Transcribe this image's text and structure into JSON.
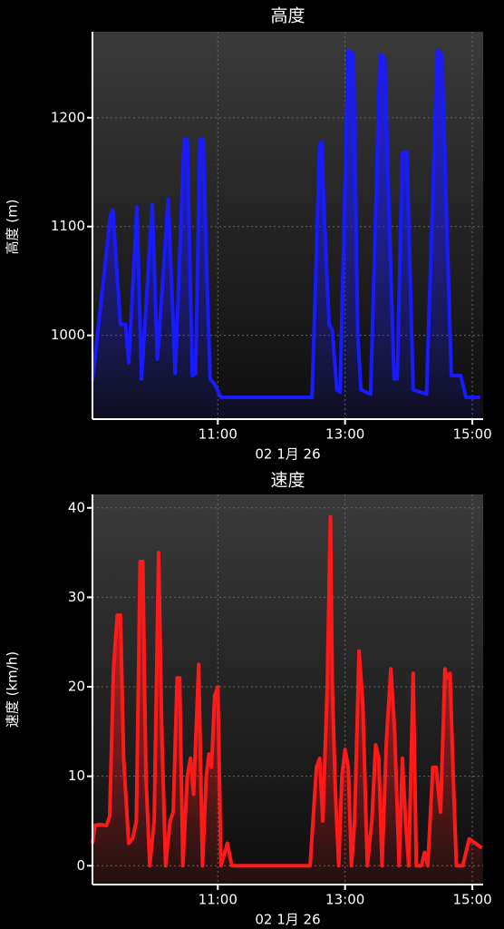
{
  "chart_data": [
    {
      "type": "line",
      "title": "高度",
      "xlabel": "02 1月 26",
      "ylabel": "高度 (m)",
      "xlim": [
        9.03,
        15.17
      ],
      "ylim": [
        923,
        1279
      ],
      "xticks": [
        {
          "value": 11,
          "label": "11:00"
        },
        {
          "value": 13,
          "label": "13:00"
        },
        {
          "value": 15,
          "label": "15:00"
        }
      ],
      "yticks": [
        1000,
        1100,
        1200
      ],
      "grid": true,
      "x": [
        9.03,
        9.31,
        9.35,
        9.4,
        9.47,
        9.55,
        9.6,
        9.73,
        9.8,
        9.97,
        10.05,
        10.22,
        10.33,
        10.47,
        10.52,
        10.6,
        10.65,
        10.72,
        10.77,
        10.83,
        10.88,
        10.95,
        11.05,
        12.48,
        12.6,
        12.63,
        12.68,
        12.75,
        12.8,
        12.87,
        12.92,
        13.05,
        13.13,
        13.2,
        13.25,
        13.4,
        13.55,
        13.62,
        13.77,
        13.82,
        13.9,
        13.97,
        14.07,
        14.28,
        14.45,
        14.52,
        14.6,
        14.67,
        14.82,
        14.9,
        15.12
      ],
      "series": [
        {
          "name": "高度",
          "color": "#1a1aff",
          "values": [
            958,
            1110,
            1115,
            1070,
            1010,
            1010,
            975,
            1118,
            960,
            1120,
            978,
            1125,
            965,
            1180,
            1180,
            963,
            965,
            1180,
            1180,
            1050,
            960,
            955,
            943,
            943,
            1175,
            1178,
            1100,
            1010,
            1005,
            950,
            948,
            1262,
            1258,
            1000,
            950,
            946,
            1258,
            1255,
            960,
            960,
            1168,
            1168,
            950,
            946,
            1262,
            1258,
            1100,
            963,
            963,
            943,
            943
          ]
        }
      ]
    },
    {
      "type": "line",
      "title": "速度",
      "xlabel": "02 1月 26",
      "ylabel": "速度 (km/h)",
      "xlim": [
        9.03,
        15.17
      ],
      "ylim": [
        -2.1,
        41.5
      ],
      "xticks": [
        {
          "value": 11,
          "label": "11:00"
        },
        {
          "value": 13,
          "label": "13:00"
        },
        {
          "value": 15,
          "label": "15:00"
        }
      ],
      "yticks": [
        0,
        10,
        20,
        30,
        40
      ],
      "grid": true,
      "x": [
        9.03,
        9.07,
        9.15,
        9.25,
        9.3,
        9.36,
        9.42,
        9.47,
        9.52,
        9.6,
        9.66,
        9.72,
        9.78,
        9.82,
        9.87,
        9.93,
        10.0,
        10.07,
        10.12,
        10.18,
        10.25,
        10.3,
        10.36,
        10.4,
        10.45,
        10.52,
        10.57,
        10.62,
        10.7,
        10.76,
        10.82,
        10.86,
        10.9,
        10.95,
        11.0,
        11.05,
        11.15,
        11.22,
        12.45,
        12.55,
        12.6,
        12.65,
        12.72,
        12.77,
        12.8,
        12.85,
        12.9,
        12.95,
        13.0,
        13.05,
        13.1,
        13.15,
        13.22,
        13.28,
        13.35,
        13.42,
        13.48,
        13.53,
        13.58,
        13.65,
        13.72,
        13.78,
        13.85,
        13.9,
        13.95,
        14.0,
        14.07,
        14.12,
        14.2,
        14.25,
        14.3,
        14.38,
        14.43,
        14.5,
        14.57,
        14.6,
        14.65,
        14.7,
        14.75,
        14.85,
        14.95,
        15.05,
        15.15
      ],
      "series": [
        {
          "name": "速度",
          "color": "#ff1a1a",
          "values": [
            2.5,
            4.5,
            4.6,
            4.5,
            5.5,
            22,
            28,
            28,
            12,
            2.5,
            3,
            5,
            34,
            34,
            10,
            0,
            5,
            35,
            15,
            0,
            5,
            6,
            21,
            21,
            0,
            10,
            12,
            8,
            22.5,
            0,
            10,
            12.5,
            11,
            19,
            20,
            0,
            2.5,
            0,
            0,
            11,
            12,
            5,
            20,
            39,
            20,
            8,
            0,
            10,
            13,
            11,
            0,
            5,
            24,
            18,
            0,
            5,
            13.5,
            12,
            0,
            14,
            22,
            15,
            0,
            12,
            5,
            0,
            21.5,
            0,
            0,
            1.5,
            0,
            11,
            11,
            6,
            22,
            21,
            21.5,
            10,
            0,
            0,
            3,
            2.5,
            2
          ]
        }
      ]
    }
  ]
}
